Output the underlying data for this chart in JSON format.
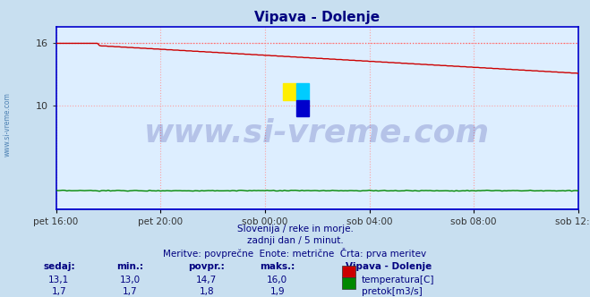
{
  "title": "Vipava - Dolenje",
  "title_color": "#000080",
  "bg_color": "#c8dff0",
  "plot_bg_color": "#ddeeff",
  "grid_color": "#ff9999",
  "grid_linestyle": ":",
  "x_labels": [
    "pet 16:00",
    "pet 20:00",
    "sob 00:00",
    "sob 04:00",
    "sob 08:00",
    "sob 12:00"
  ],
  "x_ticks_pos": [
    0,
    48,
    96,
    144,
    192,
    240
  ],
  "n_points": 241,
  "temp_color": "#cc0000",
  "flow_color": "#008800",
  "hline_color": "#ff6666",
  "hline_style": ":",
  "spine_color": "#0000cc",
  "ylim_bottom": 0,
  "ylim_top": 17.6,
  "yticks": [
    10,
    16
  ],
  "watermark_text": "www.si-vreme.com",
  "watermark_color": "#000080",
  "watermark_alpha": 0.18,
  "watermark_fontsize": 26,
  "subtitle1": "Slovenija / reke in morje.",
  "subtitle2": "zadnji dan / 5 minut.",
  "subtitle3": "Meritve: povprečne  Enote: metrične  Črta: prva meritev",
  "subtitle_color": "#000080",
  "footer_color": "#000080",
  "left_label": "www.si-vreme.com",
  "left_label_color": "#1a5a9a",
  "stat_headers": [
    "sedaj:",
    "min.:",
    "povpr.:",
    "maks.:"
  ],
  "stat_temp": [
    "13,1",
    "13,0",
    "14,7",
    "16,0"
  ],
  "stat_flow": [
    "1,7",
    "1,7",
    "1,8",
    "1,9"
  ],
  "station_name": "Vipava - Dolenje",
  "legend_temp": "temperatura[C]",
  "legend_flow": "pretok[m3/s]"
}
